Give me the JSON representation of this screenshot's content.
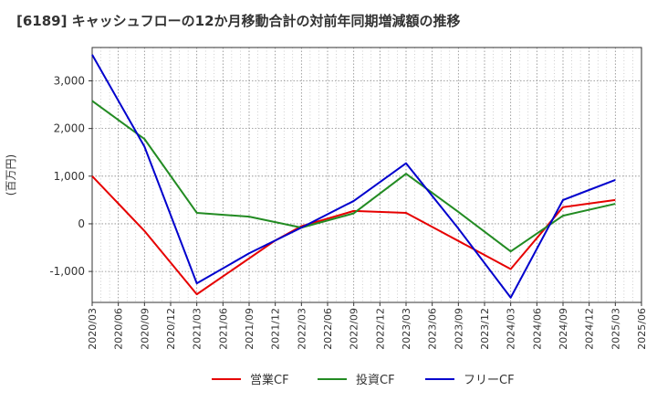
{
  "chart_data": {
    "type": "line",
    "title": "[6189]  キャッシュフローの12か月移動合計の対前年同期増減額の推移",
    "ylabel": "(百万円)",
    "xlabel": "",
    "ylim": [
      -1650,
      3700
    ],
    "yticks": [
      -1000,
      0,
      1000,
      2000,
      3000
    ],
    "ytick_labels": [
      "-1,000",
      "0",
      "1,000",
      "2,000",
      "3,000"
    ],
    "x_categories": [
      "2020/03",
      "2020/06",
      "2020/09",
      "2020/12",
      "2021/03",
      "2021/06",
      "2021/09",
      "2021/12",
      "2022/03",
      "2022/06",
      "2022/09",
      "2022/12",
      "2023/03",
      "2023/06",
      "2023/09",
      "2023/12",
      "2024/03",
      "2024/06",
      "2024/09",
      "2024/12",
      "2025/03",
      "2025/06"
    ],
    "grid": true,
    "legend_position": "bottom",
    "series": [
      {
        "name": "営業CF",
        "color": "#e60000",
        "points": [
          [
            0,
            1000
          ],
          [
            2,
            -150
          ],
          [
            4,
            -1480
          ],
          [
            7,
            -350
          ],
          [
            8,
            -50
          ],
          [
            10,
            270
          ],
          [
            12,
            230
          ],
          [
            16,
            -950
          ],
          [
            18,
            350
          ],
          [
            20,
            500
          ]
        ]
      },
      {
        "name": "投資CF",
        "color": "#228b22",
        "points": [
          [
            0,
            2580
          ],
          [
            2,
            1780
          ],
          [
            4,
            230
          ],
          [
            6,
            150
          ],
          [
            8,
            -80
          ],
          [
            10,
            220
          ],
          [
            12,
            1050
          ],
          [
            14,
            250
          ],
          [
            16,
            -580
          ],
          [
            18,
            170
          ],
          [
            20,
            420
          ]
        ]
      },
      {
        "name": "フリーCF",
        "color": "#0000cd",
        "points": [
          [
            0,
            3550
          ],
          [
            2,
            1620
          ],
          [
            4,
            -1250
          ],
          [
            6,
            -620
          ],
          [
            8,
            -80
          ],
          [
            10,
            480
          ],
          [
            12,
            1270
          ],
          [
            14,
            -100
          ],
          [
            16,
            -1550
          ],
          [
            18,
            500
          ],
          [
            20,
            920
          ]
        ]
      }
    ]
  }
}
